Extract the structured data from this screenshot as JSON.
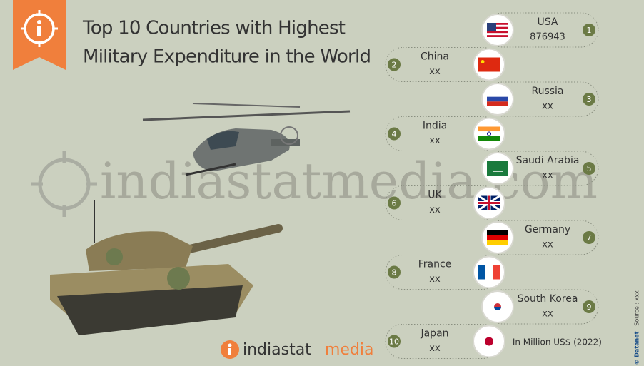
{
  "header": {
    "title_line1": "Top 10 Countries with Highest",
    "title_line2": "Military Expenditure in the World"
  },
  "items": [
    {
      "rank": "1",
      "country": "USA",
      "value": "876943"
    },
    {
      "rank": "2",
      "country": "China",
      "value": "xx"
    },
    {
      "rank": "3",
      "country": "Russia",
      "value": "xx"
    },
    {
      "rank": "4",
      "country": "India",
      "value": "xx"
    },
    {
      "rank": "5",
      "country": "Saudi Arabia",
      "value": "xx"
    },
    {
      "rank": "6",
      "country": "UK",
      "value": "xx"
    },
    {
      "rank": "7",
      "country": "Germany",
      "value": "xx"
    },
    {
      "rank": "8",
      "country": "France",
      "value": "xx"
    },
    {
      "rank": "9",
      "country": "South Korea",
      "value": "xx"
    },
    {
      "rank": "10",
      "country": "Japan",
      "value": "xx"
    }
  ],
  "unit_note": "In Million US$ (2022)",
  "watermark": "indiastatmedia.com",
  "footer": {
    "brand": "indiastat",
    "brand_accent": "media"
  },
  "side_note": {
    "copyright": "© Datanet",
    "source": "Source : xxx"
  }
}
